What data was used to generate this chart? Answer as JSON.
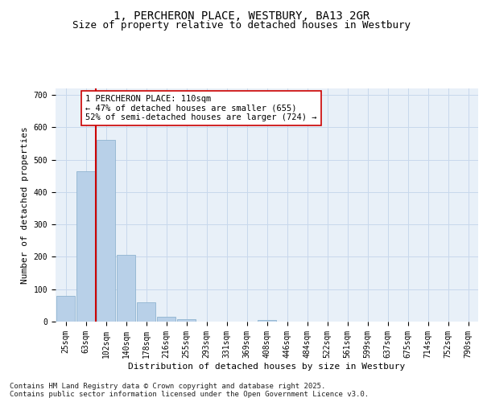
{
  "title": "1, PERCHERON PLACE, WESTBURY, BA13 2GR",
  "subtitle": "Size of property relative to detached houses in Westbury",
  "xlabel": "Distribution of detached houses by size in Westbury",
  "ylabel": "Number of detached properties",
  "categories": [
    "25sqm",
    "63sqm",
    "102sqm",
    "140sqm",
    "178sqm",
    "216sqm",
    "255sqm",
    "293sqm",
    "331sqm",
    "369sqm",
    "408sqm",
    "446sqm",
    "484sqm",
    "522sqm",
    "561sqm",
    "599sqm",
    "637sqm",
    "675sqm",
    "714sqm",
    "752sqm",
    "790sqm"
  ],
  "values": [
    80,
    465,
    560,
    207,
    60,
    15,
    7,
    0,
    0,
    0,
    5,
    0,
    0,
    0,
    0,
    0,
    0,
    0,
    0,
    0,
    0
  ],
  "bar_color": "#b8d0e8",
  "bar_edge_color": "#90b4d0",
  "grid_color": "#c8d8ec",
  "background_color": "#e8f0f8",
  "vline_x_bar": 2,
  "vline_color": "#cc0000",
  "annotation_text": "1 PERCHERON PLACE: 110sqm\n← 47% of detached houses are smaller (655)\n52% of semi-detached houses are larger (724) →",
  "annotation_box_color": "#ffffff",
  "annotation_box_edge_color": "#cc0000",
  "ylim": [
    0,
    720
  ],
  "yticks": [
    0,
    100,
    200,
    300,
    400,
    500,
    600,
    700
  ],
  "footer": "Contains HM Land Registry data © Crown copyright and database right 2025.\nContains public sector information licensed under the Open Government Licence v3.0.",
  "title_fontsize": 10,
  "subtitle_fontsize": 9,
  "axis_label_fontsize": 8,
  "tick_fontsize": 7,
  "annotation_fontsize": 7.5,
  "footer_fontsize": 6.5
}
